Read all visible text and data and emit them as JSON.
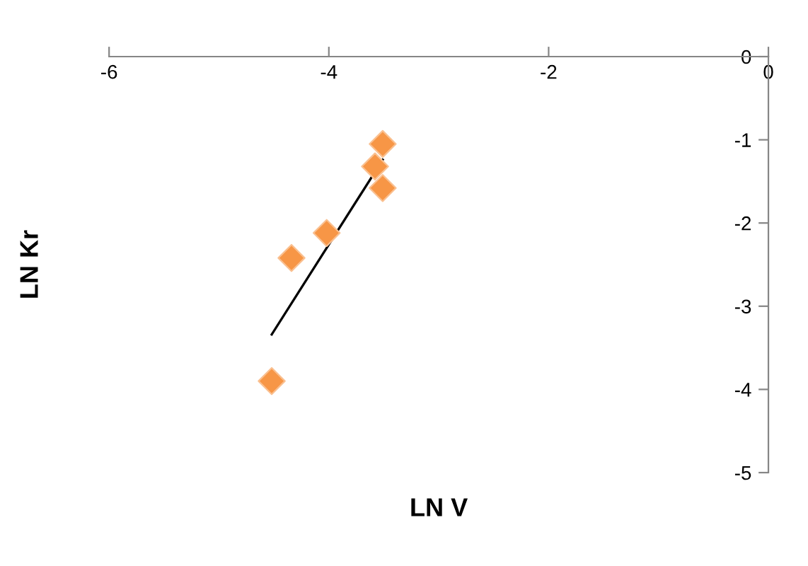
{
  "chart_data": {
    "type": "scatter",
    "xlabel": "LN V",
    "ylabel": "LN Kr",
    "xlim": [
      -6,
      0
    ],
    "ylim": [
      -5,
      0
    ],
    "xticks": [
      -6,
      -4,
      -2,
      0
    ],
    "yticks": [
      -5,
      -4,
      -3,
      -2,
      -1,
      0
    ],
    "grid": false,
    "legend": false,
    "series": [
      {
        "marker": "diamond",
        "color": "#f79646",
        "x": [
          -3.51,
          -3.58,
          -3.51,
          -4.02,
          -4.34,
          -4.52
        ],
        "values": [
          -1.05,
          -1.32,
          -1.58,
          -2.12,
          -2.42,
          -3.9
        ]
      },
      {
        "type": "line",
        "marker": "none",
        "color": "#000000",
        "x": [
          -4.52,
          -3.51
        ],
        "values": [
          -3.34,
          -1.24
        ]
      }
    ]
  }
}
